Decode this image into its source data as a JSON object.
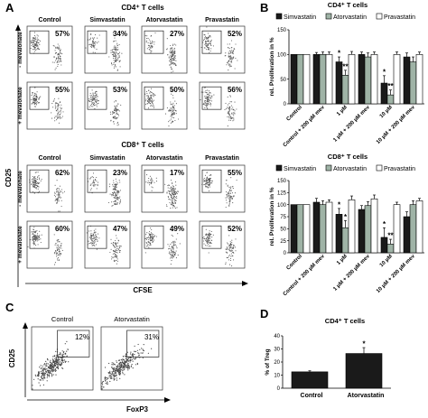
{
  "panels": {
    "A": {
      "letter": "A",
      "cd4_title": "CD4⁺ T cells",
      "cd8_title": "CD8⁺ T cells",
      "columns": [
        "Control",
        "Simvastatin",
        "Atorvastatin",
        "Pravastatin"
      ],
      "rows": [
        "- mevalonate",
        "+ mevalonate"
      ],
      "y_axis_label": "CD25",
      "x_axis_label": "CFSE",
      "cd4_percentages": [
        [
          "57%",
          "34%",
          "27%",
          "52%"
        ],
        [
          "55%",
          "53%",
          "50%",
          "56%"
        ]
      ],
      "cd8_percentages": [
        [
          "62%",
          "23%",
          "17%",
          "55%"
        ],
        [
          "60%",
          "47%",
          "49%",
          "52%"
        ]
      ]
    },
    "C": {
      "letter": "C",
      "labels": [
        "Control",
        "Atorvastatin"
      ],
      "percentages": [
        "12%",
        "31%"
      ],
      "y_axis_label": "CD25",
      "x_axis_label": "FoxP3"
    }
  },
  "chart_data": [
    {
      "panel": "B",
      "type": "bar",
      "title": "CD4⁺ T cells",
      "ylabel": "rel. Proliferation in %",
      "ylim": [
        0,
        150
      ],
      "yticks": [
        0,
        50,
        100,
        150
      ],
      "categories": [
        "Control",
        "Control + 200 µM mev",
        "1 µM",
        "1 µM + 200 µM mev",
        "10 µM",
        "10 µM + 200 µM mev"
      ],
      "series": [
        {
          "name": "Simvastatin",
          "color": "#1a1a1a",
          "values": [
            100,
            100,
            85,
            100,
            42,
            95
          ],
          "errors": [
            0,
            4,
            10,
            5,
            15,
            8
          ]
        },
        {
          "name": "Atorvastatin",
          "color": "#9fb3a6",
          "values": [
            100,
            100,
            58,
            95,
            18,
            85
          ],
          "errors": [
            0,
            5,
            10,
            8,
            10,
            10
          ]
        },
        {
          "name": "Pravastatin",
          "color": "#ffffff",
          "values": [
            100,
            100,
            100,
            100,
            100,
            100
          ],
          "errors": [
            0,
            5,
            6,
            5,
            5,
            5
          ]
        }
      ],
      "annotations": [
        {
          "category": 2,
          "series": 0,
          "text": "*"
        },
        {
          "category": 2,
          "series": 1,
          "text": "**"
        },
        {
          "category": 4,
          "series": 0,
          "text": "*"
        },
        {
          "category": 4,
          "series": 1,
          "text": "**"
        }
      ],
      "legend": "top"
    },
    {
      "panel": "B",
      "type": "bar",
      "title": "CD8⁺ T cells",
      "ylabel": "rel. Proliferation in %",
      "ylim": [
        0,
        150
      ],
      "yticks": [
        0,
        25,
        50,
        75,
        100,
        125,
        150
      ],
      "categories": [
        "Control",
        "Control + 200 µM mev",
        "1 µM",
        "1 µM + 200 µM mev",
        "10 µM",
        "10 µM + 200 µM mev"
      ],
      "series": [
        {
          "name": "Simvastatin",
          "color": "#1a1a1a",
          "values": [
            100,
            105,
            80,
            90,
            32,
            75
          ],
          "errors": [
            0,
            8,
            12,
            8,
            20,
            10
          ]
        },
        {
          "name": "Atorvastatin",
          "color": "#9fb3a6",
          "values": [
            100,
            100,
            52,
            98,
            18,
            100
          ],
          "errors": [
            0,
            8,
            15,
            8,
            10,
            8
          ]
        },
        {
          "name": "Pravastatin",
          "color": "#ffffff",
          "values": [
            100,
            105,
            110,
            112,
            100,
            108
          ],
          "errors": [
            0,
            5,
            8,
            8,
            5,
            5
          ]
        }
      ],
      "annotations": [
        {
          "category": 2,
          "series": 0,
          "text": "*"
        },
        {
          "category": 2,
          "series": 1,
          "text": "*"
        },
        {
          "category": 4,
          "series": 0,
          "text": "*"
        },
        {
          "category": 4,
          "series": 1,
          "text": "**"
        }
      ],
      "legend": "top"
    },
    {
      "panel": "D",
      "type": "bar",
      "title": "CD4⁺ T cells",
      "ylabel": "% of Treg",
      "ylim": [
        0,
        40
      ],
      "yticks": [
        0,
        10,
        20,
        30,
        40
      ],
      "categories": [
        "Control",
        "Atorvastatin"
      ],
      "series": [
        {
          "name": "",
          "color": "#1a1a1a",
          "values": [
            12.5,
            26.5
          ],
          "errors": [
            0.8,
            4.5
          ]
        }
      ],
      "annotations": [
        {
          "category": 1,
          "series": 0,
          "text": "*"
        }
      ]
    }
  ]
}
